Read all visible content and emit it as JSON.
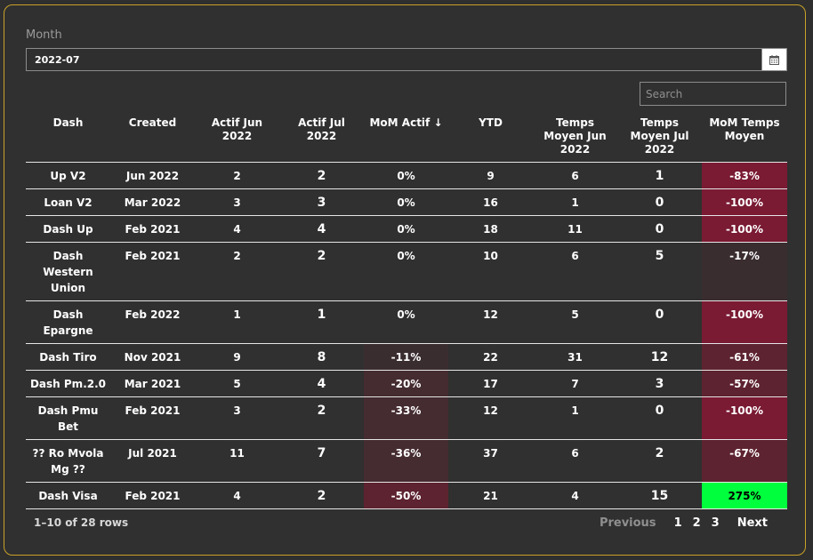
{
  "filters": {
    "month_label": "Month",
    "month_value": "2022-07",
    "calendar_icon": "calendar-icon",
    "search_placeholder": "Search"
  },
  "colors": {
    "neg_strong": "#7a1a33",
    "neg_medium": "#5e2330",
    "neg_weak": "#452c31",
    "neg_faint": "#3a2d30",
    "positive": "#00ff3c",
    "border_accent": "#c9a227"
  },
  "table": {
    "headers": {
      "dash": "Dash",
      "created": "Created",
      "actif_jun": "Actif Jun 2022",
      "actif_jul": "Actif Jul 2022",
      "mom_actif": "MoM Actif",
      "ytd": "YTD",
      "temps_jun": "Temps Moyen Jun 2022",
      "temps_jul": "Temps Moyen Jul 2022",
      "mom_temps": "MoM Temps Moyen"
    },
    "sort_indicator": "↓",
    "rows": [
      {
        "dash": "Up V2",
        "created": "Jun 2022",
        "actif_jun": "2",
        "actif_jul": "2",
        "mom_actif": "0%",
        "ytd": "9",
        "temps_jun": "6",
        "temps_jul": "1",
        "mom_temps": "-83%"
      },
      {
        "dash": "Loan V2",
        "created": "Mar 2022",
        "actif_jun": "3",
        "actif_jul": "3",
        "mom_actif": "0%",
        "ytd": "16",
        "temps_jun": "1",
        "temps_jul": "0",
        "mom_temps": "-100%"
      },
      {
        "dash": "Dash Up",
        "created": "Feb 2021",
        "actif_jun": "4",
        "actif_jul": "4",
        "mom_actif": "0%",
        "ytd": "18",
        "temps_jun": "11",
        "temps_jul": "0",
        "mom_temps": "-100%"
      },
      {
        "dash": "Dash Western Union",
        "created": "Feb 2021",
        "actif_jun": "2",
        "actif_jul": "2",
        "mom_actif": "0%",
        "ytd": "10",
        "temps_jun": "6",
        "temps_jul": "5",
        "mom_temps": "-17%"
      },
      {
        "dash": "Dash Epargne",
        "created": "Feb 2022",
        "actif_jun": "1",
        "actif_jul": "1",
        "mom_actif": "0%",
        "ytd": "12",
        "temps_jun": "5",
        "temps_jul": "0",
        "mom_temps": "-100%"
      },
      {
        "dash": "Dash Tiro",
        "created": "Nov 2021",
        "actif_jun": "9",
        "actif_jul": "8",
        "mom_actif": "-11%",
        "ytd": "22",
        "temps_jun": "31",
        "temps_jul": "12",
        "mom_temps": "-61%"
      },
      {
        "dash": "Dash Pm.2.0",
        "created": "Mar 2021",
        "actif_jun": "5",
        "actif_jul": "4",
        "mom_actif": "-20%",
        "ytd": "17",
        "temps_jun": "7",
        "temps_jul": "3",
        "mom_temps": "-57%"
      },
      {
        "dash": "Dash Pmu Bet",
        "created": "Feb 2021",
        "actif_jun": "3",
        "actif_jul": "2",
        "mom_actif": "-33%",
        "ytd": "12",
        "temps_jun": "1",
        "temps_jul": "0",
        "mom_temps": "-100%"
      },
      {
        "dash": "?? Ro Mvola Mg ??",
        "created": "Jul 2021",
        "actif_jun": "11",
        "actif_jul": "7",
        "mom_actif": "-36%",
        "ytd": "37",
        "temps_jun": "6",
        "temps_jul": "2",
        "mom_temps": "-67%"
      },
      {
        "dash": "Dash Visa",
        "created": "Feb 2021",
        "actif_jun": "4",
        "actif_jul": "2",
        "mom_actif": "-50%",
        "ytd": "21",
        "temps_jun": "4",
        "temps_jul": "15",
        "mom_temps": "275%"
      }
    ]
  },
  "footer": {
    "row_info": "1–10 of 28 rows",
    "previous_label": "Previous",
    "pages": [
      "1",
      "2",
      "3"
    ],
    "next_label": "Next"
  }
}
